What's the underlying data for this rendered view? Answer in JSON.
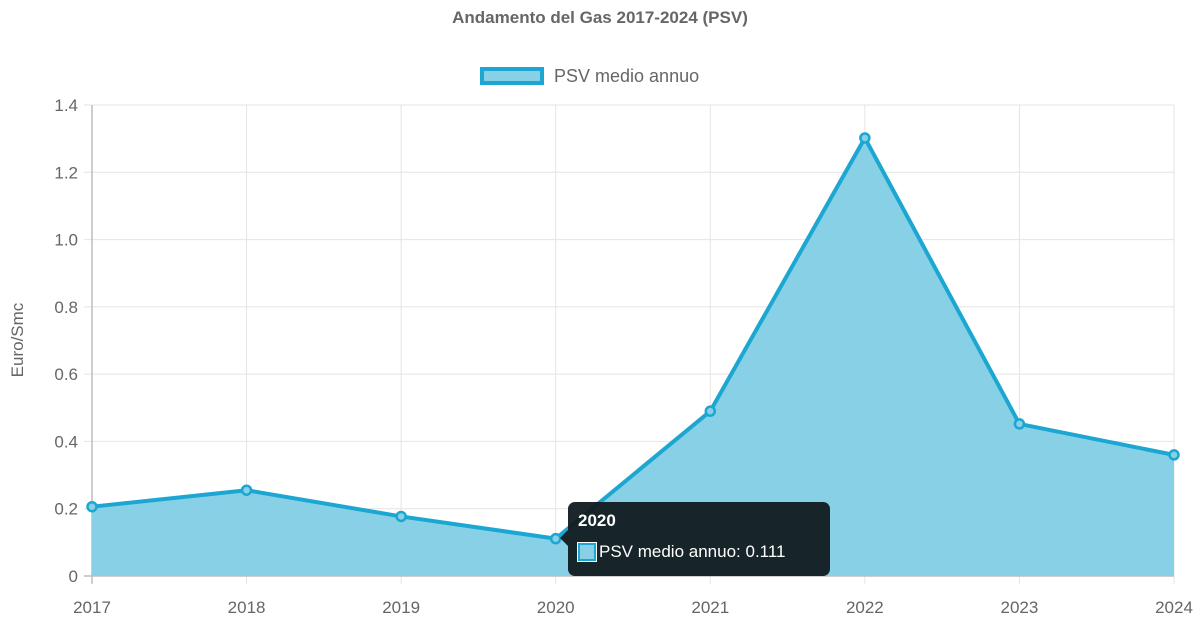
{
  "chart_data": {
    "type": "area",
    "title": "Andamento del Gas 2017-2024 (PSV)",
    "xlabel": "",
    "ylabel": "Euro/Smc",
    "categories": [
      "2017",
      "2018",
      "2019",
      "2020",
      "2021",
      "2022",
      "2023",
      "2024"
    ],
    "series": [
      {
        "name": "PSV medio annuo",
        "values": [
          0.206,
          0.255,
          0.177,
          0.111,
          0.49,
          1.302,
          0.452,
          0.36
        ],
        "color": "#1ba7d1",
        "fill": "#87d0e6"
      }
    ],
    "ylim": [
      0,
      1.4
    ],
    "yticks": [
      "0",
      "0.2",
      "0.4",
      "0.6",
      "0.8",
      "1.0",
      "1.2",
      "1.4"
    ],
    "grid": true,
    "legend_position": "top"
  },
  "legend": {
    "label": "PSV medio annuo"
  },
  "tooltip": {
    "title": "2020",
    "label": "PSV medio annuo: 0.111"
  }
}
